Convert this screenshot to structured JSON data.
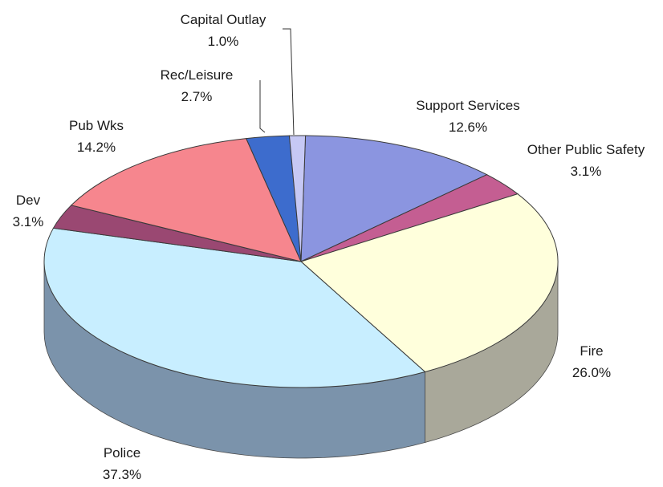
{
  "chart_data": {
    "type": "pie",
    "title": "",
    "style": "3d",
    "categories": [
      "Support Services",
      "Other Public Safety",
      "Fire",
      "Police",
      "Dev",
      "Pub Wks",
      "Rec/Leisure",
      "Capital Outlay"
    ],
    "values": [
      12.6,
      3.1,
      26.0,
      37.3,
      3.1,
      14.2,
      2.7,
      1.0
    ],
    "value_labels": [
      "12.6%",
      "3.1%",
      "26.0%",
      "37.3%",
      "3.1%",
      "14.2%",
      "2.7%",
      "1.0%"
    ],
    "colors": [
      "#8b95e0",
      "#c45e92",
      "#ffffdc",
      "#c8eeff",
      "#9a4872",
      "#f6868e",
      "#3d6ccd",
      "#c6c8f4"
    ],
    "side_colors": [
      "#5b63a0",
      "#8a3f66",
      "#a9a89a",
      "#7b93ab",
      "#6a304e",
      "#b05a60",
      "#2a4a8e",
      "#8a8cb0"
    ],
    "legend": "none"
  }
}
